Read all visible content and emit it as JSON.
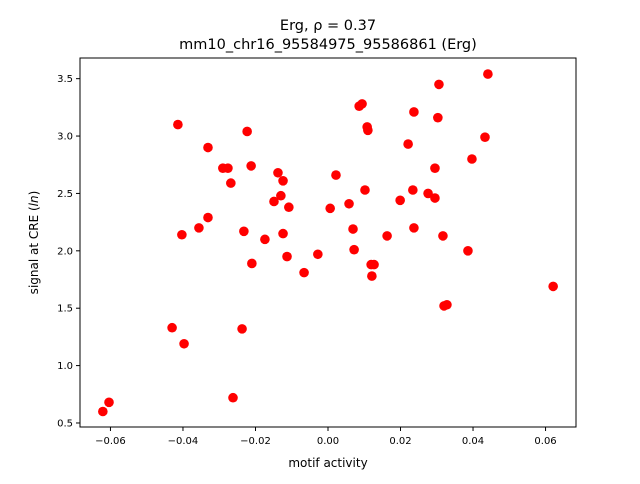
{
  "chart_data": {
    "type": "scatter",
    "title_line1": "Erg, ρ = 0.37",
    "title_line2": "mm10_chr16_95584975_95586861 (Erg)",
    "xlabel": "motif activity",
    "ylabel": "signal at CRE (ln)",
    "xlim": [
      -0.0684,
      0.0684
    ],
    "ylim": [
      0.465,
      3.68
    ],
    "xticks": [
      -0.06,
      -0.04,
      -0.02,
      0.0,
      0.02,
      0.04,
      0.06
    ],
    "xtick_labels": [
      "−0.06",
      "−0.04",
      "−0.02",
      "0.00",
      "0.02",
      "0.04",
      "0.06"
    ],
    "yticks": [
      0.5,
      1.0,
      1.5,
      2.0,
      2.5,
      3.0,
      3.5
    ],
    "ytick_labels": [
      "0.5",
      "1.0",
      "1.5",
      "2.0",
      "2.5",
      "3.0",
      "3.5"
    ],
    "grid": false,
    "marker_color": "#ff0000",
    "points": [
      [
        -0.0621,
        0.6
      ],
      [
        -0.0604,
        0.68
      ],
      [
        -0.043,
        1.33
      ],
      [
        -0.0414,
        3.1
      ],
      [
        -0.0403,
        2.14
      ],
      [
        -0.0397,
        1.19
      ],
      [
        -0.0356,
        2.2
      ],
      [
        -0.0331,
        2.9
      ],
      [
        -0.0331,
        2.29
      ],
      [
        -0.029,
        2.72
      ],
      [
        -0.0276,
        2.72
      ],
      [
        -0.0268,
        2.59
      ],
      [
        -0.0262,
        0.72
      ],
      [
        -0.0237,
        1.32
      ],
      [
        -0.0232,
        2.17
      ],
      [
        -0.0223,
        3.04
      ],
      [
        -0.0212,
        2.74
      ],
      [
        -0.021,
        1.89
      ],
      [
        -0.0174,
        2.1
      ],
      [
        -0.0149,
        2.43
      ],
      [
        -0.0138,
        2.68
      ],
      [
        -0.013,
        2.48
      ],
      [
        -0.0124,
        2.61
      ],
      [
        -0.0124,
        2.15
      ],
      [
        -0.0113,
        1.95
      ],
      [
        -0.0108,
        2.38
      ],
      [
        -0.0066,
        1.81
      ],
      [
        -0.0028,
        1.97
      ],
      [
        0.0006,
        2.37
      ],
      [
        0.0022,
        2.66
      ],
      [
        0.0058,
        2.41
      ],
      [
        0.0069,
        2.19
      ],
      [
        0.0072,
        2.01
      ],
      [
        0.0086,
        3.26
      ],
      [
        0.0094,
        3.28
      ],
      [
        0.0102,
        2.53
      ],
      [
        0.0108,
        3.08
      ],
      [
        0.011,
        3.05
      ],
      [
        0.0119,
        1.88
      ],
      [
        0.0127,
        1.88
      ],
      [
        0.0121,
        1.78
      ],
      [
        0.0163,
        2.13
      ],
      [
        0.0199,
        2.44
      ],
      [
        0.0221,
        2.93
      ],
      [
        0.0234,
        2.53
      ],
      [
        0.0237,
        3.21
      ],
      [
        0.0237,
        2.2
      ],
      [
        0.0276,
        2.5
      ],
      [
        0.0295,
        2.72
      ],
      [
        0.0295,
        2.46
      ],
      [
        0.0303,
        3.16
      ],
      [
        0.0306,
        3.45
      ],
      [
        0.0317,
        2.13
      ],
      [
        0.032,
        1.52
      ],
      [
        0.0328,
        1.53
      ],
      [
        0.0386,
        2.0
      ],
      [
        0.0397,
        2.8
      ],
      [
        0.0433,
        2.99
      ],
      [
        0.0441,
        3.54
      ],
      [
        0.0621,
        1.69
      ]
    ]
  }
}
